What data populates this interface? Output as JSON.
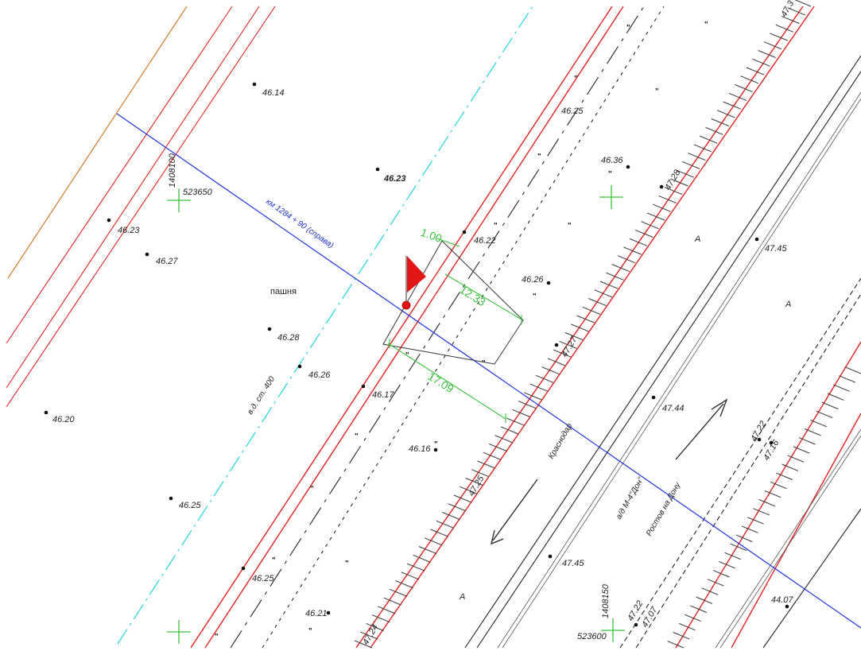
{
  "colors": {
    "background": "#ffffff",
    "red_line": "#e52222",
    "orange_line": "#d4843a",
    "blue_line": "#2233e0",
    "cyan_dash": "#2fd6e0",
    "green_dim": "#39c339",
    "marker_red": "#e41515"
  },
  "labels": {
    "kilometer_section": "км 1284 + 90 (справа)",
    "field": "пашня",
    "pipeline": "в.д. ст. 400",
    "road_highway": "а/д М-4\"Дон\"",
    "direction_krasnodar": "Краснодар",
    "direction_rostov": "Ростов на Дону",
    "grid_coord_1": "1408100",
    "grid_coord_2": "523650",
    "grid_coord_3": "1408150",
    "grid_coord_4": "523600",
    "lane_a_1": "А",
    "lane_a_2": "А",
    "lane_a_3": "А"
  },
  "dimensions": {
    "d1": "1.00",
    "d2": "12.33",
    "d3": "17.09"
  },
  "elevations": [
    "46.14",
    "46.23",
    "46.23",
    "46.27",
    "46.28",
    "46.26",
    "46.20",
    "46.25",
    "46.25",
    "46.21",
    "46.17",
    "46.16",
    "46.22",
    "46.26",
    "46.25",
    "46.36",
    "47.28",
    "47.27",
    "47.25",
    "47.24",
    "47.45",
    "47.44",
    "47.45",
    "47.22",
    "47.16",
    "47.22",
    "47.07",
    "44.07",
    "47.3"
  ],
  "marks": {
    "m": "\""
  },
  "icons": {
    "flag": "flag-icon",
    "grid_cross": "grid-cross-icon",
    "arrow": "direction-arrow-icon"
  }
}
